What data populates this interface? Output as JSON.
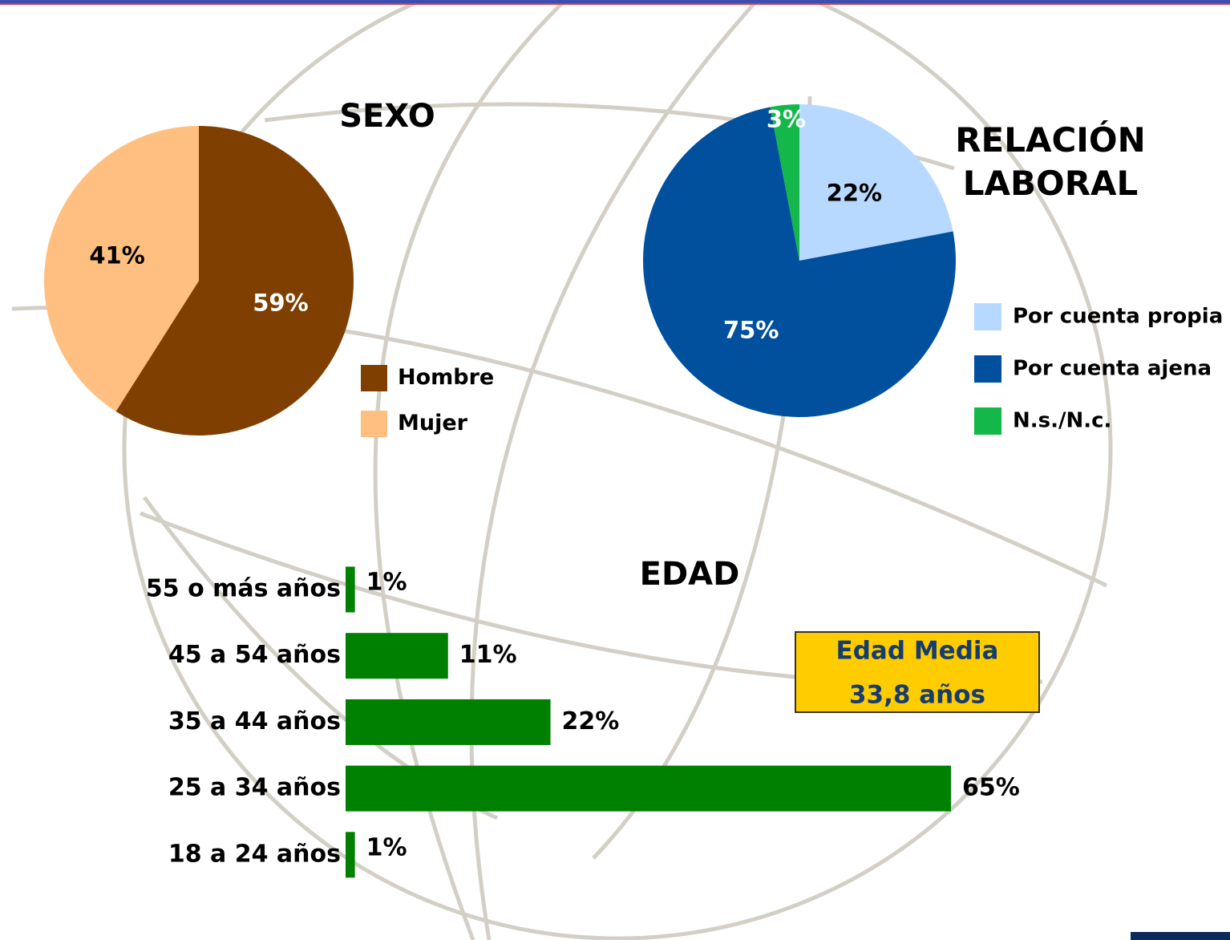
{
  "chart_data": [
    {
      "type": "pie",
      "title": "SEXO",
      "categories": [
        "Hombre",
        "Mujer"
      ],
      "values": [
        59,
        41
      ],
      "value_labels": [
        "59%",
        "41%"
      ],
      "colors": [
        "#7f3f00",
        "#ffbf80"
      ]
    },
    {
      "type": "pie",
      "title": "RELACIÓN LABORAL",
      "categories": [
        "Por cuenta propia",
        "Por cuenta ajena",
        "N.s./N.c."
      ],
      "values": [
        22,
        75,
        3
      ],
      "value_labels": [
        "22%",
        "75%",
        "3%"
      ],
      "colors": [
        "#b8d9ff",
        "#00509e",
        "#14b84a"
      ]
    },
    {
      "type": "hbar",
      "title": "EDAD",
      "categories": [
        "55 o más años",
        "45 a 54 años",
        "35 a 44 años",
        "25 a 34 años",
        "18 a 24 años"
      ],
      "values": [
        1,
        11,
        22,
        65,
        1
      ],
      "value_labels": [
        "1%",
        "11%",
        "22%",
        "65%",
        "1%"
      ],
      "color": "#008000",
      "annotation": [
        "Edad Media",
        "33,8 años"
      ]
    }
  ]
}
